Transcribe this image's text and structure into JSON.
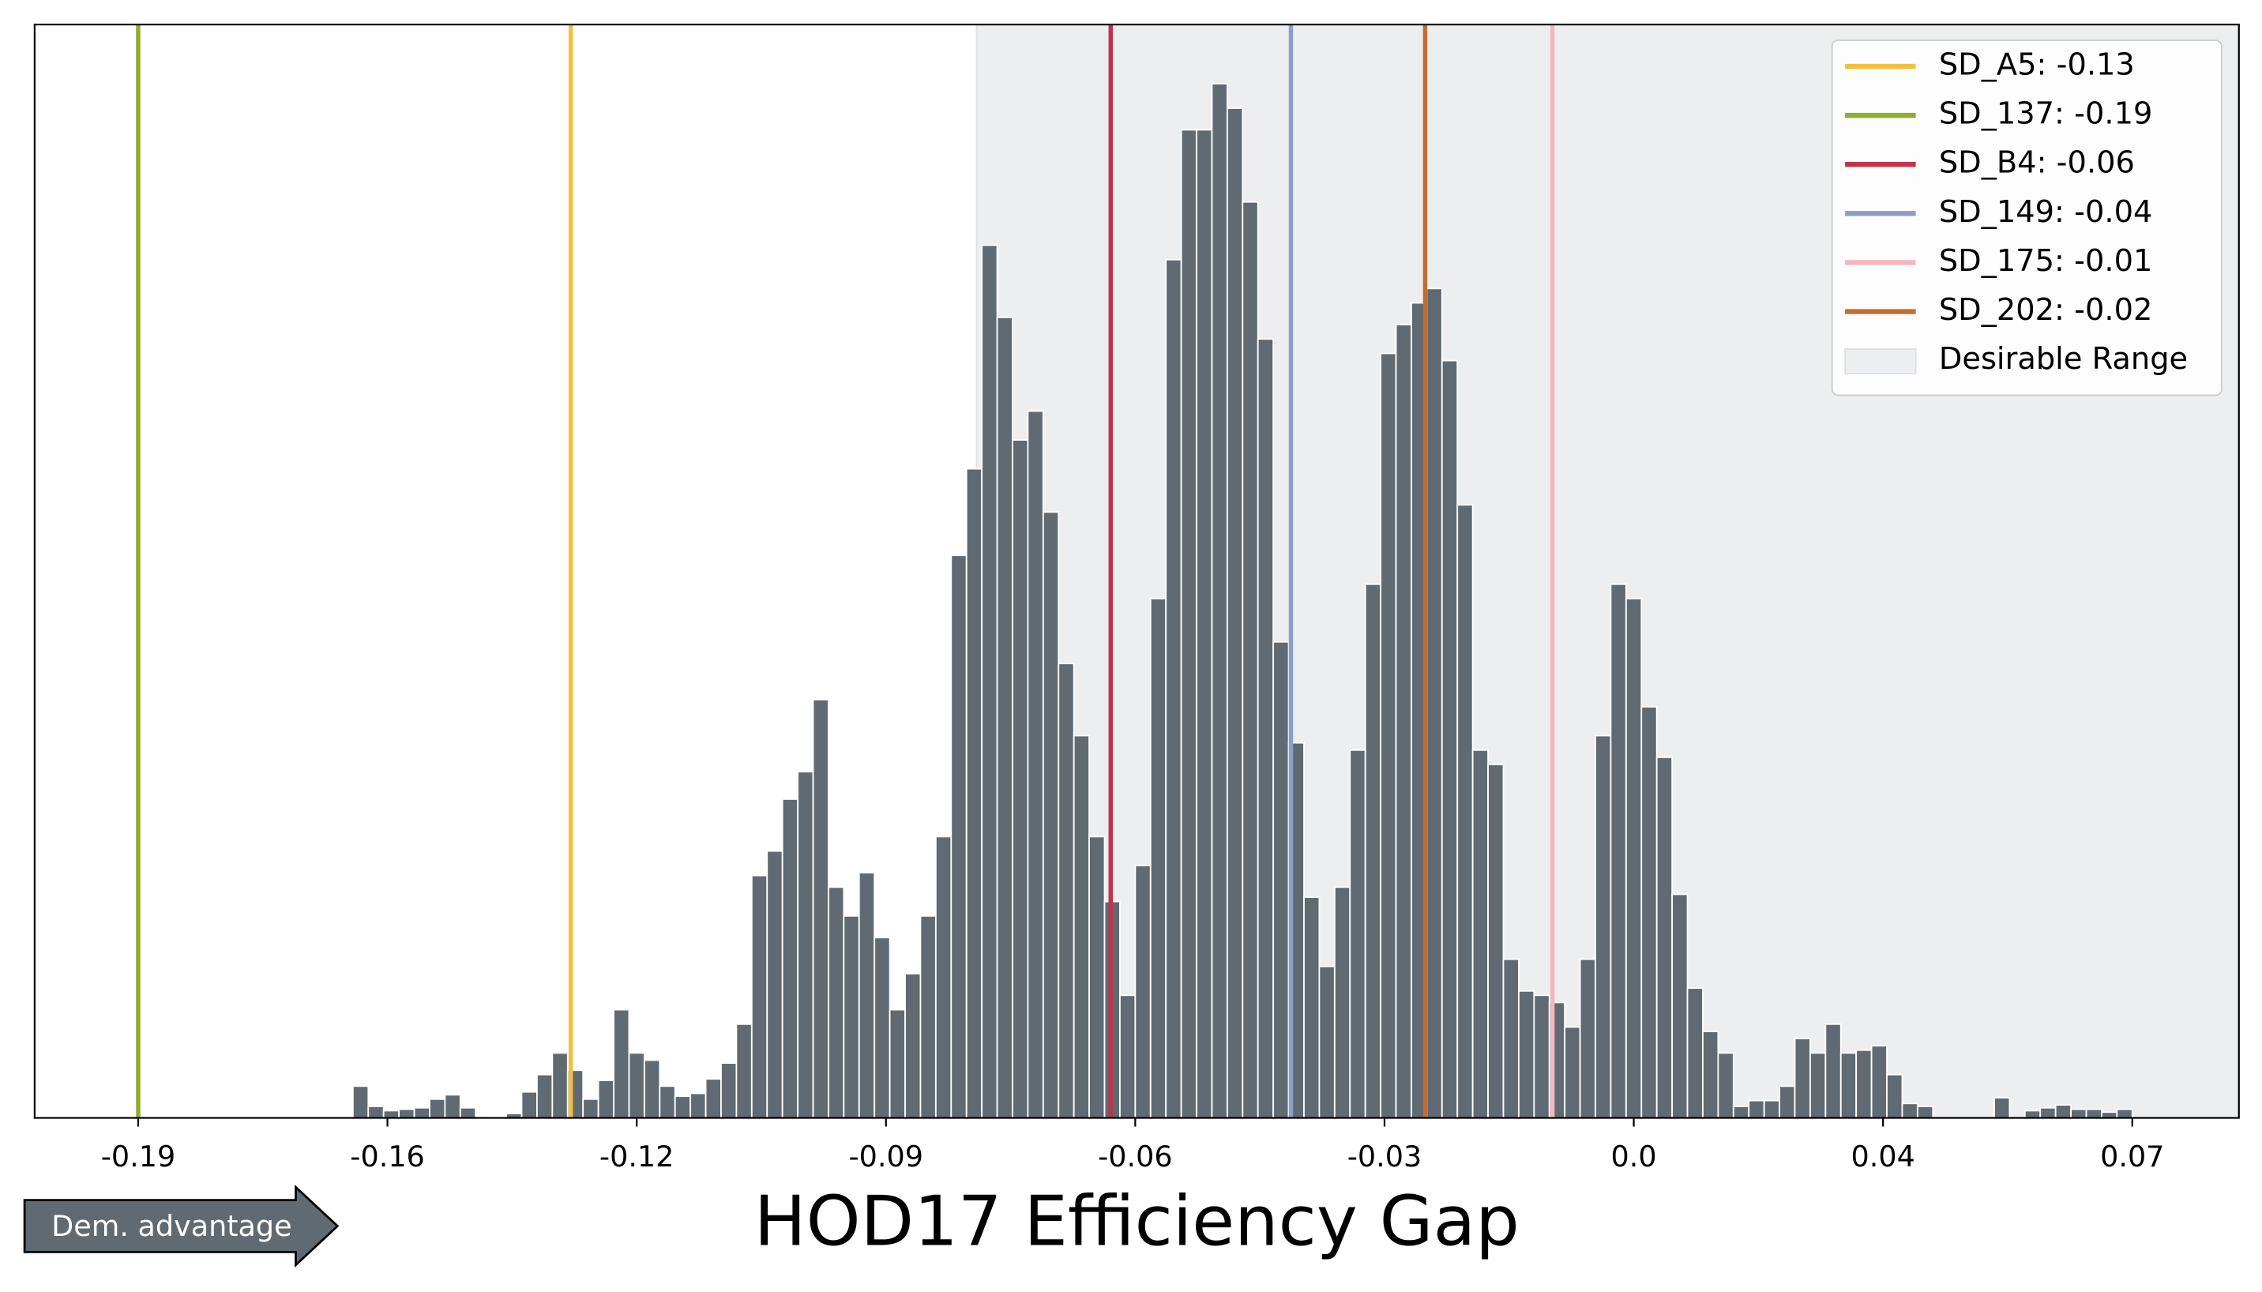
{
  "chart_data": {
    "type": "histogram",
    "xlabel": "HOD17 Efficiency Gap",
    "annotation": "Dem. advantage",
    "bins": [
      -0.162,
      -0.16,
      -0.158,
      -0.156,
      -0.154,
      -0.152,
      -0.15,
      -0.148,
      -0.146,
      -0.144,
      -0.142,
      -0.14,
      -0.138,
      -0.136,
      -0.134,
      -0.132,
      -0.13,
      -0.128,
      -0.126,
      -0.124,
      -0.122,
      -0.12,
      -0.118,
      -0.116,
      -0.114,
      -0.112,
      -0.11,
      -0.108,
      -0.106,
      -0.104,
      -0.102,
      -0.1,
      -0.098,
      -0.096,
      -0.094,
      -0.092,
      -0.09,
      -0.088,
      -0.086,
      -0.084,
      -0.082,
      -0.08,
      -0.078,
      -0.076,
      -0.074,
      -0.072,
      -0.07,
      -0.068,
      -0.066,
      -0.064,
      -0.062,
      -0.06,
      -0.058,
      -0.056,
      -0.054,
      -0.052,
      -0.05,
      -0.048,
      -0.046,
      -0.044,
      -0.042,
      -0.04,
      -0.038,
      -0.036,
      -0.034,
      -0.032,
      -0.03,
      -0.028,
      -0.026,
      -0.024,
      -0.022,
      -0.02,
      -0.018,
      -0.016,
      -0.014,
      -0.012,
      -0.01,
      -0.008,
      -0.006,
      -0.004,
      -0.002,
      0,
      0.002,
      0.004,
      0.006,
      0.008,
      0.01,
      0.012,
      0.014,
      0.016,
      0.018,
      0.02,
      0.022,
      0.024,
      0.026,
      0.028,
      0.03,
      0.032,
      0.034,
      0.036,
      0.038,
      0.04,
      0.042,
      0.044,
      0.046,
      0.048,
      0.05,
      0.052,
      0.054,
      0.056,
      0.058,
      0.06,
      0.062,
      0.064,
      0.066,
      0.068,
      0.07
    ],
    "values": [
      22,
      8,
      5,
      6,
      7,
      13,
      16,
      7,
      0,
      0,
      3,
      18,
      30,
      45,
      33,
      13,
      26,
      75,
      45,
      40,
      22,
      15,
      17,
      27,
      38,
      65,
      168,
      185,
      221,
      240,
      290,
      160,
      140,
      170,
      125,
      75,
      100,
      140,
      195,
      390,
      450,
      605,
      555,
      470,
      490,
      420,
      315,
      265,
      195,
      150,
      85,
      175,
      360,
      595,
      685,
      685,
      717,
      700,
      635,
      540,
      330,
      260,
      153,
      105,
      160,
      255,
      370,
      530,
      550,
      565,
      575,
      525,
      425,
      255,
      245,
      110,
      88,
      85,
      80,
      63,
      110,
      265,
      370,
      360,
      285,
      250,
      155,
      90,
      60,
      45,
      8,
      12,
      12,
      22,
      55,
      45,
      65,
      45,
      47,
      50,
      30,
      10,
      8,
      0,
      0,
      0,
      0,
      14,
      0,
      5,
      7,
      9,
      6,
      6,
      4,
      6
    ],
    "color": "#5f6a72",
    "xlim": [
      -0.2035,
      0.0839
    ],
    "ylim": [
      0,
      758
    ],
    "xticks": [
      -0.19,
      {
        "value": -0.1575,
        "label": "-0.16"
      },
      {
        "value": -0.125,
        "label": "-0.12"
      },
      {
        "value": -0.0925,
        "label": "-0.09"
      },
      -0.06,
      {
        "value": -0.0275,
        "label": "-0.03"
      },
      {
        "value": 0.005,
        "label": "0.0"
      },
      {
        "value": 0.0375,
        "label": "0.04"
      },
      0.07
    ],
    "reference_lines": [
      {
        "name": "SD_A5: -0.13",
        "x": -0.1336,
        "color": "#f2c03f"
      },
      {
        "name": "SD_137: -0.19",
        "x": -0.19,
        "color": "#8fae2e"
      },
      {
        "name": "SD_B4: -0.06",
        "x": -0.0632,
        "color": "#c0334a"
      },
      {
        "name": "SD_149: -0.04",
        "x": -0.0397,
        "color": "#8c9fc8"
      },
      {
        "name": "SD_175: -0.01",
        "x": -0.0056,
        "color": "#f2b8c0"
      },
      {
        "name": "SD_202: -0.02",
        "x": -0.0222,
        "color": "#c26e2e"
      }
    ],
    "shaded_range": {
      "name": "Desirable Range",
      "x": [
        -0.0807,
        0.0839
      ],
      "color": "#edeef0"
    },
    "legend": "upper right"
  }
}
